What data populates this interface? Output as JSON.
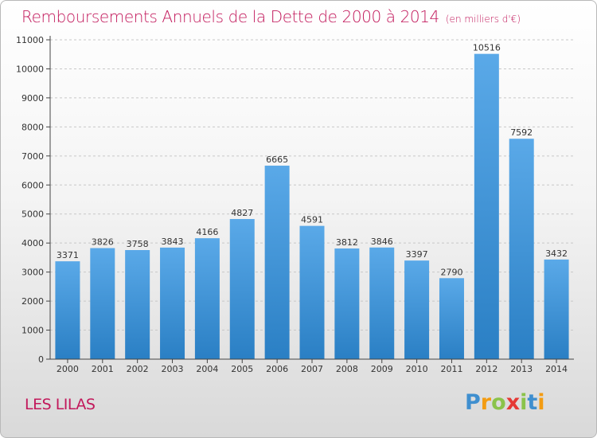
{
  "title": "Remboursements Annuels de la Dette de 2000 à 2014",
  "unit": "(en milliers d'€)",
  "commune": "LES LILAS",
  "logo": {
    "text": "Proxiti",
    "colors": [
      "#3f8fcf",
      "#f39c12",
      "#8bc34a",
      "#e53935",
      "#8bc34a",
      "#3f8fcf",
      "#f39c12"
    ]
  },
  "colors": {
    "title": "#c2185b",
    "bar_top": "#5aa9e8",
    "bar_bottom": "#2a7fc4"
  },
  "chart_data": {
    "type": "bar",
    "title": "Remboursements Annuels de la Dette de 2000 à 2014",
    "xlabel": "",
    "ylabel": "",
    "categories": [
      "2000",
      "2001",
      "2002",
      "2003",
      "2004",
      "2005",
      "2006",
      "2007",
      "2008",
      "2009",
      "2010",
      "2011",
      "2012",
      "2013",
      "2014"
    ],
    "values": [
      3371,
      3826,
      3758,
      3843,
      4166,
      4827,
      6665,
      4591,
      3812,
      3846,
      3397,
      2790,
      10516,
      7592,
      3432
    ],
    "ylim": [
      0,
      11000
    ],
    "yticks": [
      0,
      1000,
      2000,
      3000,
      4000,
      5000,
      6000,
      7000,
      8000,
      9000,
      10000,
      11000
    ],
    "grid": true
  }
}
